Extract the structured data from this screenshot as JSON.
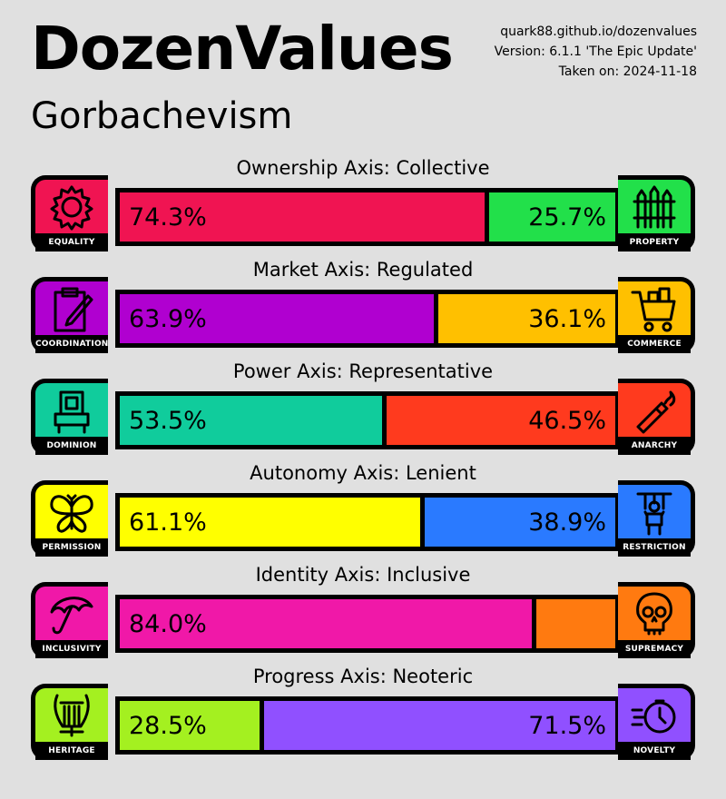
{
  "header": {
    "title": "DozenValues",
    "subtitle": "Gorbachevism",
    "url": "quark88.github.io/dozenvalues",
    "version": "Version: 6.1.1 'The Epic Update'",
    "date": "Taken on: 2024-11-18"
  },
  "axes": [
    {
      "title": "Ownership Axis: Collective",
      "left": {
        "label": "EQUALITY",
        "icon": "gear-icon",
        "color": "#f01452",
        "value": 74.3,
        "text": "74.3%"
      },
      "right": {
        "label": "PROPERTY",
        "icon": "fence-icon",
        "color": "#22e04a",
        "value": 25.7,
        "text": "25.7%"
      }
    },
    {
      "title": "Market Axis: Regulated",
      "left": {
        "label": "COORDINATION",
        "icon": "clipboard-icon",
        "color": "#b000d0",
        "value": 63.9,
        "text": "63.9%"
      },
      "right": {
        "label": "COMMERCE",
        "icon": "shopping-cart-icon",
        "color": "#ffc000",
        "value": 36.1,
        "text": "36.1%"
      }
    },
    {
      "title": "Power Axis: Representative",
      "left": {
        "label": "DOMINION",
        "icon": "throne-icon",
        "color": "#10cc9c",
        "value": 53.5,
        "text": "53.5%"
      },
      "right": {
        "label": "ANARCHY",
        "icon": "molotov-icon",
        "color": "#ff3a1e",
        "value": 46.5,
        "text": "46.5%"
      }
    },
    {
      "title": "Autonomy Axis: Lenient",
      "left": {
        "label": "PERMISSION",
        "icon": "butterfly-icon",
        "color": "#ffff00",
        "value": 61.1,
        "text": "61.1%"
      },
      "right": {
        "label": "RESTRICTION",
        "icon": "puppet-icon",
        "color": "#2a7aff",
        "value": 38.9,
        "text": "38.9%"
      }
    },
    {
      "title": "Identity Axis: Inclusive",
      "left": {
        "label": "INCLUSIVITY",
        "icon": "umbrella-icon",
        "color": "#f018a8",
        "value": 84.0,
        "text": "84.0%"
      },
      "right": {
        "label": "SUPREMACY",
        "icon": "skull-icon",
        "color": "#ff7a10",
        "value": 16.0,
        "text": ""
      }
    },
    {
      "title": "Progress Axis: Neoteric",
      "left": {
        "label": "HERITAGE",
        "icon": "lyre-icon",
        "color": "#a4f020",
        "value": 28.5,
        "text": "28.5%"
      },
      "right": {
        "label": "NOVELTY",
        "icon": "stopwatch-icon",
        "color": "#9050ff",
        "value": 71.5,
        "text": "71.5%"
      }
    }
  ]
}
